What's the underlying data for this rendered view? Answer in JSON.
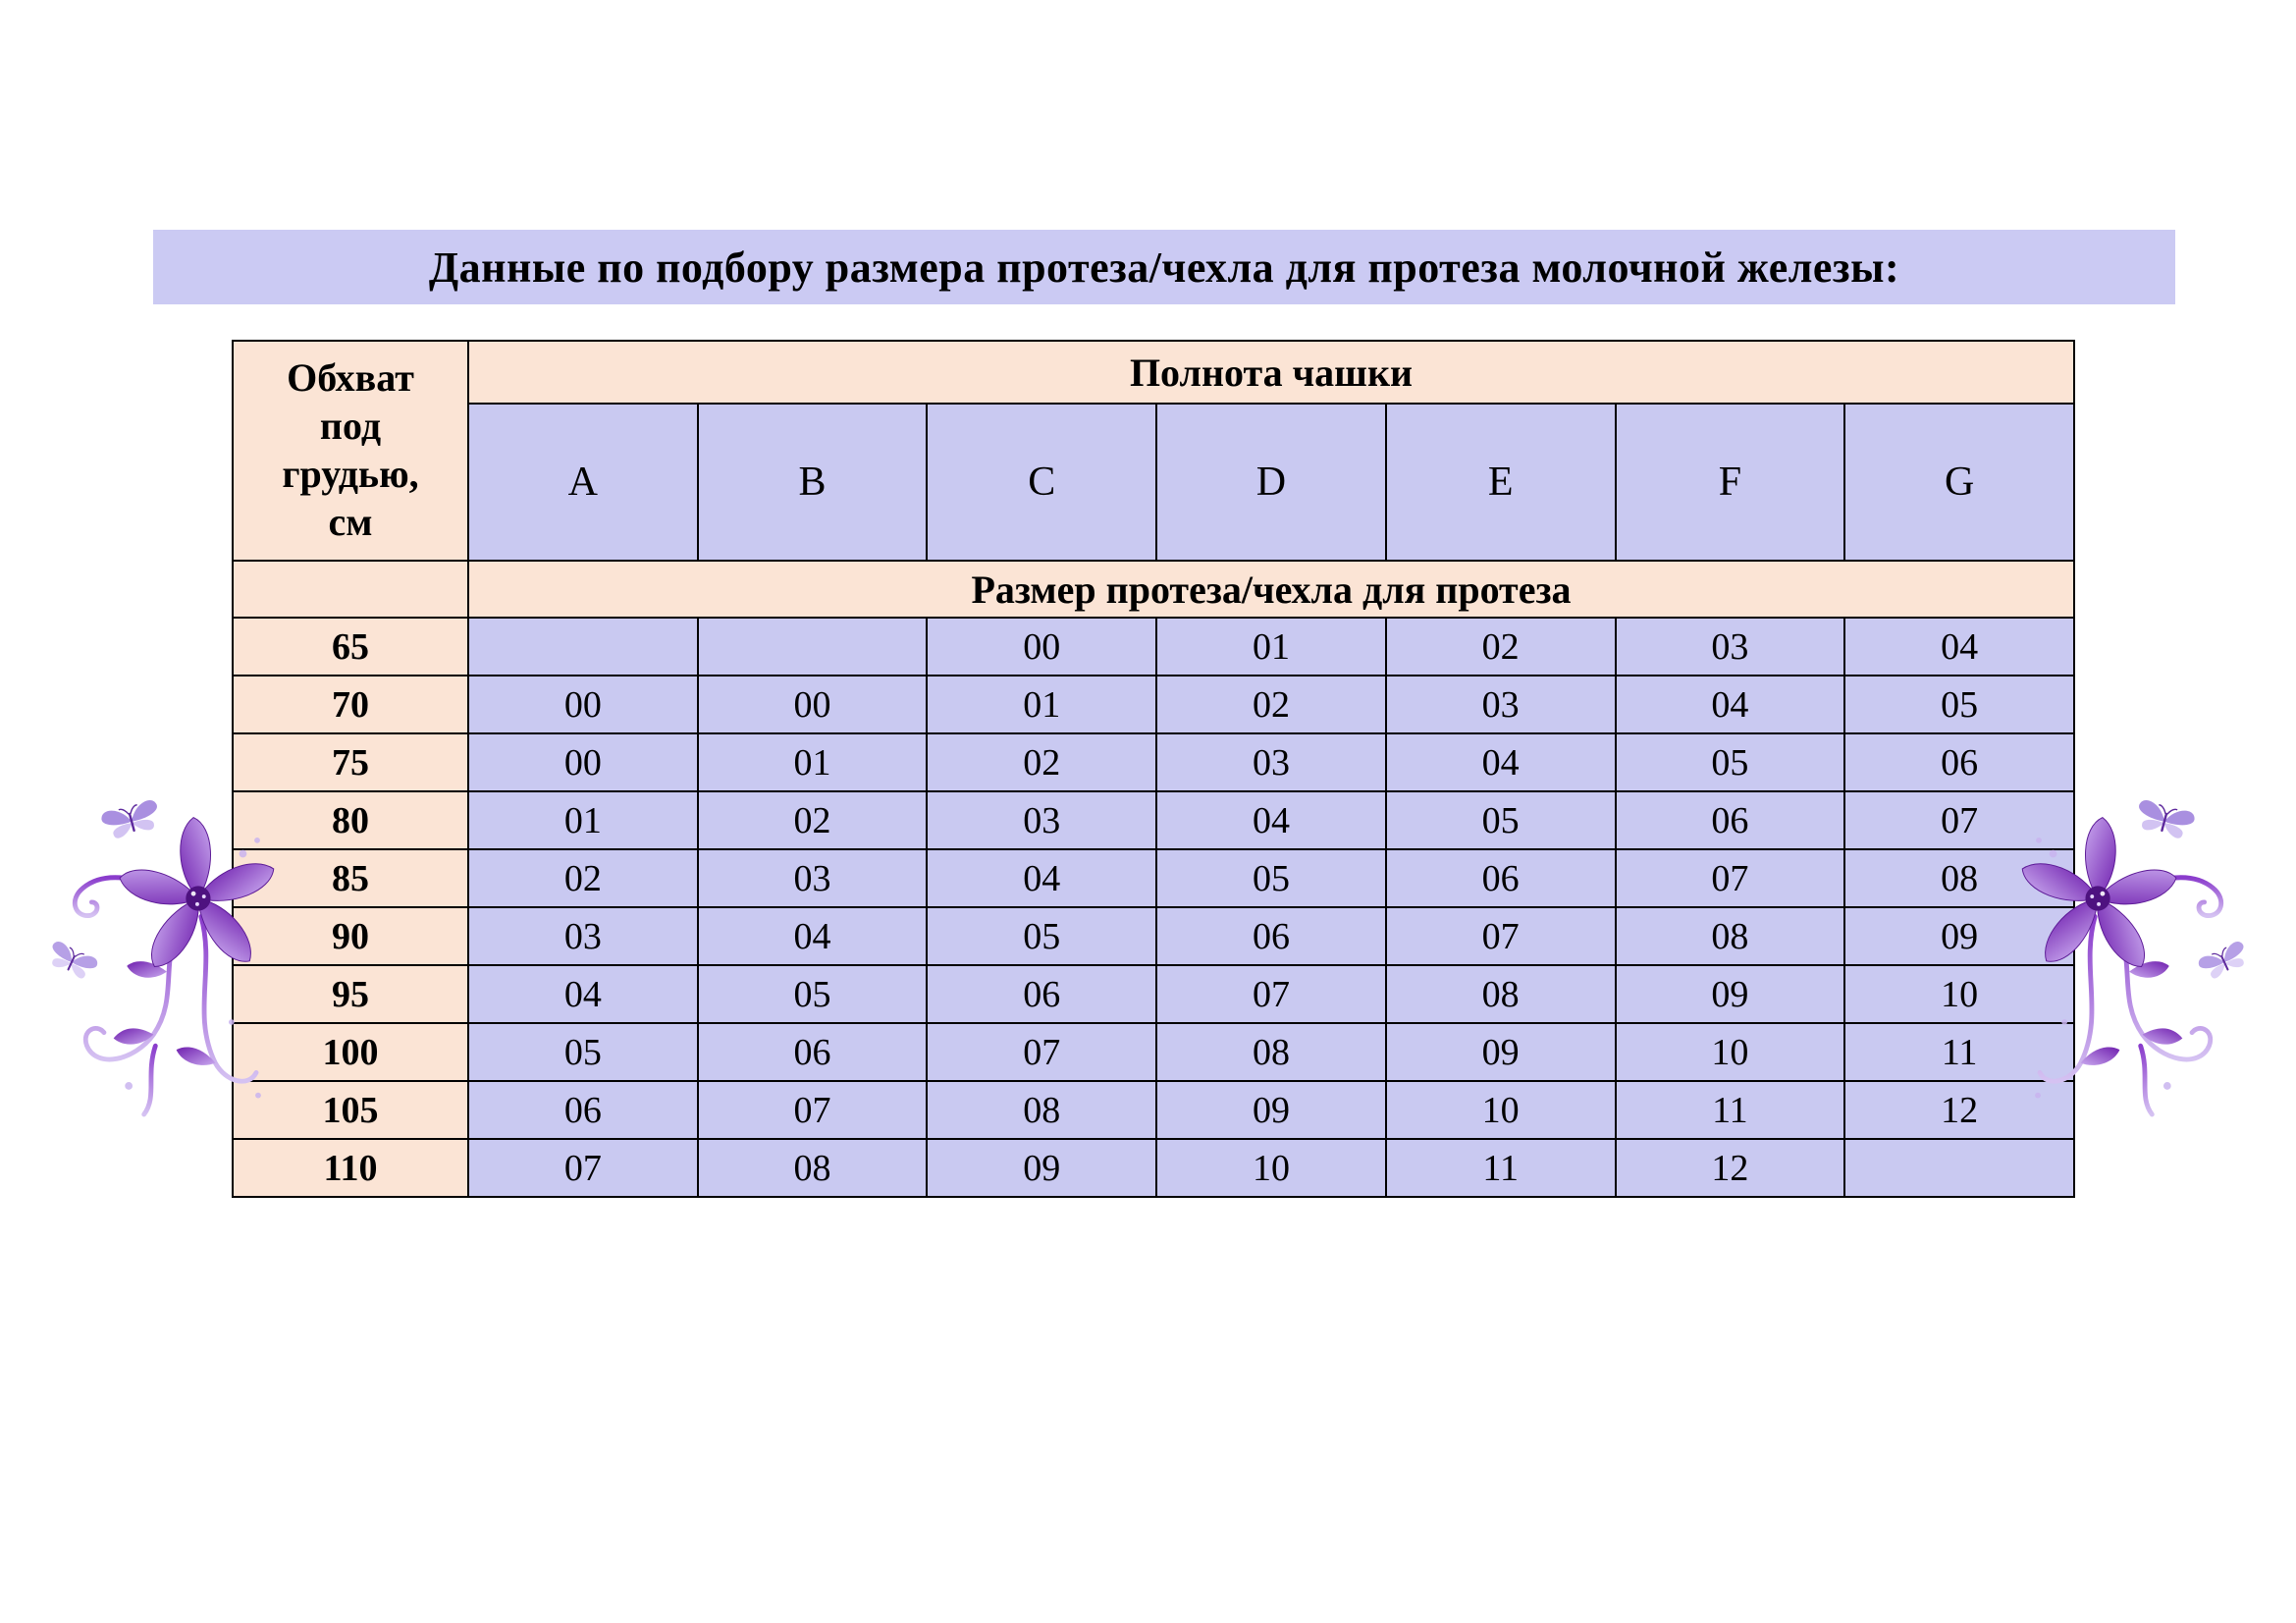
{
  "page": {
    "title": "Данные по подбору размера протеза/чехла для протеза молочной железы:"
  },
  "table": {
    "corner_header": "Обхват\nпод\nгрудью,\nсм",
    "cup_fullness_header": "Полнота чашки",
    "cup_labels": [
      "A",
      "B",
      "C",
      "D",
      "E",
      "F",
      "G"
    ],
    "size_header": "Размер протеза/чехла для протеза",
    "rows": [
      {
        "underbust": "65",
        "sizes": [
          "",
          "",
          "00",
          "01",
          "02",
          "03",
          "04"
        ]
      },
      {
        "underbust": "70",
        "sizes": [
          "00",
          "00",
          "01",
          "02",
          "03",
          "04",
          "05"
        ]
      },
      {
        "underbust": "75",
        "sizes": [
          "00",
          "01",
          "02",
          "03",
          "04",
          "05",
          "06"
        ]
      },
      {
        "underbust": "80",
        "sizes": [
          "01",
          "02",
          "03",
          "04",
          "05",
          "06",
          "07"
        ]
      },
      {
        "underbust": "85",
        "sizes": [
          "02",
          "03",
          "04",
          "05",
          "06",
          "07",
          "08"
        ]
      },
      {
        "underbust": "90",
        "sizes": [
          "03",
          "04",
          "05",
          "06",
          "07",
          "08",
          "09"
        ]
      },
      {
        "underbust": "95",
        "sizes": [
          "04",
          "05",
          "06",
          "07",
          "08",
          "09",
          "10"
        ]
      },
      {
        "underbust": "100",
        "sizes": [
          "05",
          "06",
          "07",
          "08",
          "09",
          "10",
          "11"
        ]
      },
      {
        "underbust": "105",
        "sizes": [
          "06",
          "07",
          "08",
          "09",
          "10",
          "11",
          "12"
        ]
      },
      {
        "underbust": "110",
        "sizes": [
          "07",
          "08",
          "09",
          "10",
          "11",
          "12",
          ""
        ]
      }
    ]
  },
  "icons": {
    "left_ornament": "flower-butterfly-ornament",
    "right_ornament": "flower-butterfly-ornament"
  },
  "colors": {
    "title_bg": "#cbcaf3",
    "header_peach": "#fbe4d5",
    "cell_lavender": "#c9c9f1",
    "border": "#000000",
    "flower_purple": "#7b22bd",
    "flower_light": "#c9a8ef"
  }
}
